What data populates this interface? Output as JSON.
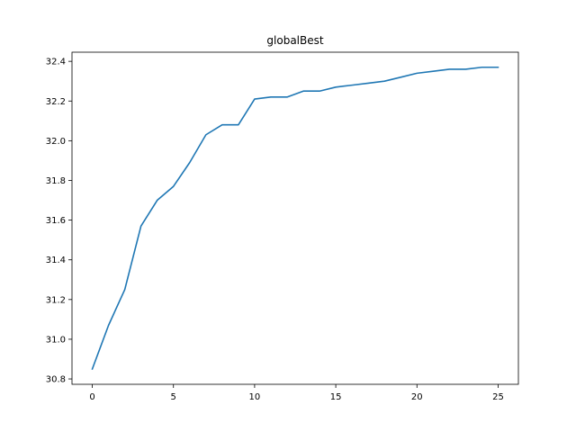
{
  "chart_data": {
    "type": "line",
    "title": "globalBest",
    "xlabel": "",
    "ylabel": "",
    "xlim": [
      -1.25,
      26.25
    ],
    "ylim": [
      30.773,
      32.446
    ],
    "grid": false,
    "x_ticks": [
      0,
      5,
      10,
      15,
      20,
      25
    ],
    "y_ticks": [
      30.8,
      31.0,
      31.2,
      31.4,
      31.6,
      31.8,
      32.0,
      32.2,
      32.4
    ],
    "y_tick_labels": [
      "30.8",
      "31.0",
      "31.2",
      "31.4",
      "31.6",
      "31.8",
      "32.0",
      "32.2",
      "32.4"
    ],
    "series": [
      {
        "color": "#1f77b4",
        "x": [
          0,
          1,
          2,
          3,
          4,
          5,
          6,
          7,
          8,
          9,
          10,
          11,
          12,
          13,
          14,
          15,
          16,
          17,
          18,
          19,
          20,
          21,
          22,
          23,
          24,
          25
        ],
        "values": [
          30.85,
          31.07,
          31.25,
          31.57,
          31.7,
          31.77,
          31.89,
          32.03,
          32.08,
          32.08,
          32.21,
          32.22,
          32.22,
          32.25,
          32.25,
          32.27,
          32.28,
          32.29,
          32.3,
          32.32,
          32.34,
          32.35,
          32.36,
          32.36,
          32.37,
          32.37
        ]
      }
    ]
  }
}
